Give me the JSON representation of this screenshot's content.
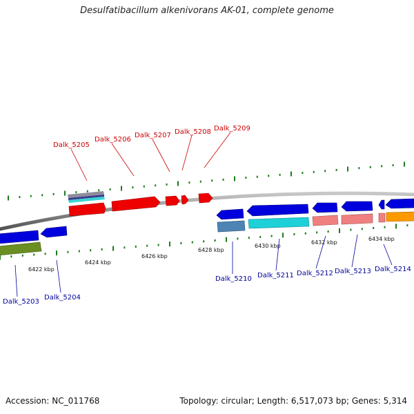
{
  "title": "Desulfatibacillum alkenivorans AK-01, complete genome",
  "footer": {
    "accession": "Accession: NC_011768",
    "topology": "Topology: circular; Length: 6,517,073 bp; Genes: 5,314"
  },
  "colors": {
    "backbone": "#8c8c8c",
    "tick": "#1a7a1a",
    "label_forward": "#cc0000",
    "label_reverse": "#00009c"
  },
  "scale_labels": [
    {
      "text": "6422 kbp",
      "kbp": 6422
    },
    {
      "text": "6424 kbp",
      "kbp": 6424
    },
    {
      "text": "6426 kbp",
      "kbp": 6426
    },
    {
      "text": "6428 kbp",
      "kbp": 6428
    },
    {
      "text": "6430 kbp",
      "kbp": 6430
    },
    {
      "text": "6432 kbp",
      "kbp": 6432
    },
    {
      "text": "6434 kbp",
      "kbp": 6434
    }
  ],
  "genes_forward": [
    {
      "label": "Dalk_5205",
      "color": "#ee0000"
    },
    {
      "label": "Dalk_5206",
      "color": "#ee0000"
    },
    {
      "label": "Dalk_5207",
      "color": "#ee0000"
    },
    {
      "label": "Dalk_5208",
      "color": "#ee0000"
    },
    {
      "label": "Dalk_5209",
      "color": "#ee0000"
    }
  ],
  "genes_reverse": [
    {
      "label": "Dalk_5203",
      "color": "#0000dd"
    },
    {
      "label": "Dalk_5204",
      "color": "#0000dd"
    },
    {
      "label": "Dalk_5210",
      "color": "#0000dd"
    },
    {
      "label": "Dalk_5211",
      "color": "#0000dd"
    },
    {
      "label": "Dalk_5212",
      "color": "#0000dd"
    },
    {
      "label": "Dalk_5213",
      "color": "#0000dd"
    },
    {
      "label": "Dalk_5214",
      "color": "#0000dd"
    }
  ]
}
